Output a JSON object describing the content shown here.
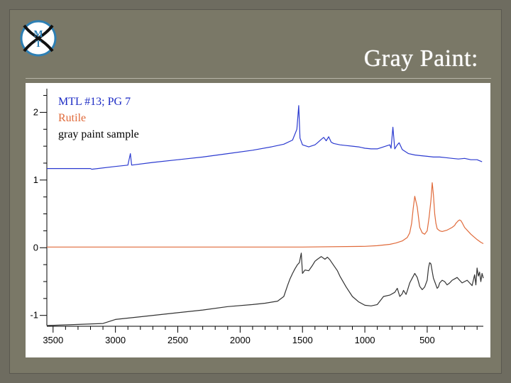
{
  "slide": {
    "title": "Gray Paint:",
    "logo_letters": "MTI"
  },
  "chart_data": {
    "type": "line",
    "title": "",
    "xlabel": "",
    "ylabel": "",
    "xlim": [
      3550,
      50
    ],
    "ylim": [
      -1.15,
      2.35
    ],
    "x_ticks": [
      3500,
      3000,
      2500,
      2000,
      1500,
      1000,
      500
    ],
    "y_ticks": [
      2,
      1,
      0,
      -1
    ],
    "grid": false,
    "legend_placement": "top-left",
    "series": [
      {
        "name": "MTL #13; PG 7",
        "color": "#2b3ad0",
        "x": [
          3550,
          3200,
          3190,
          3000,
          2900,
          2880,
          2870,
          2700,
          2500,
          2300,
          2100,
          1900,
          1750,
          1650,
          1580,
          1545,
          1530,
          1520,
          1500,
          1450,
          1400,
          1380,
          1350,
          1330,
          1310,
          1290,
          1270,
          1250,
          1200,
          1150,
          1100,
          1050,
          1000,
          950,
          900,
          850,
          800,
          790,
          775,
          760,
          740,
          725,
          700,
          650,
          600,
          550,
          500,
          450,
          400,
          350,
          300,
          250,
          200,
          150,
          100,
          60
        ],
        "y": [
          1.17,
          1.17,
          1.16,
          1.2,
          1.22,
          1.39,
          1.22,
          1.26,
          1.3,
          1.34,
          1.39,
          1.44,
          1.49,
          1.53,
          1.59,
          1.75,
          2.1,
          1.62,
          1.52,
          1.49,
          1.52,
          1.55,
          1.6,
          1.63,
          1.58,
          1.64,
          1.56,
          1.54,
          1.52,
          1.51,
          1.5,
          1.49,
          1.47,
          1.46,
          1.46,
          1.49,
          1.52,
          1.47,
          1.78,
          1.46,
          1.52,
          1.55,
          1.45,
          1.39,
          1.37,
          1.36,
          1.35,
          1.34,
          1.34,
          1.33,
          1.32,
          1.31,
          1.32,
          1.3,
          1.3,
          1.27
        ]
      },
      {
        "name": "Rutile",
        "color": "#e06a3a",
        "x": [
          3550,
          3000,
          2000,
          1500,
          1000,
          900,
          800,
          750,
          700,
          660,
          640,
          625,
          612,
          600,
          580,
          560,
          540,
          520,
          500,
          485,
          470,
          460,
          450,
          440,
          430,
          420,
          400,
          380,
          360,
          340,
          320,
          300,
          280,
          270,
          260,
          250,
          240,
          230,
          220,
          200,
          150,
          100,
          70,
          50
        ],
        "y": [
          0.01,
          0.01,
          0.01,
          0.01,
          0.02,
          0.03,
          0.05,
          0.07,
          0.1,
          0.15,
          0.22,
          0.36,
          0.58,
          0.76,
          0.6,
          0.3,
          0.22,
          0.2,
          0.25,
          0.45,
          0.7,
          0.96,
          0.78,
          0.5,
          0.36,
          0.28,
          0.25,
          0.24,
          0.25,
          0.26,
          0.28,
          0.3,
          0.33,
          0.36,
          0.38,
          0.4,
          0.41,
          0.4,
          0.37,
          0.3,
          0.2,
          0.12,
          0.08,
          0.06
        ]
      },
      {
        "name": "gray paint sample",
        "color": "#333333",
        "x": [
          3550,
          3100,
          3000,
          2900,
          2800,
          2500,
          2300,
          2100,
          1900,
          1800,
          1700,
          1650,
          1620,
          1600,
          1580,
          1560,
          1540,
          1525,
          1510,
          1500,
          1480,
          1450,
          1420,
          1400,
          1380,
          1350,
          1320,
          1300,
          1280,
          1250,
          1220,
          1200,
          1150,
          1100,
          1050,
          1000,
          950,
          900,
          850,
          800,
          760,
          740,
          720,
          700,
          690,
          680,
          670,
          660,
          640,
          620,
          600,
          580,
          560,
          540,
          520,
          500,
          490,
          480,
          470,
          460,
          450,
          440,
          430,
          420,
          410,
          400,
          380,
          360,
          340,
          320,
          300,
          280,
          260,
          240,
          220,
          200,
          180,
          160,
          140,
          120,
          110,
          100,
          90,
          80,
          70,
          60,
          50
        ],
        "y": [
          -1.15,
          -1.12,
          -1.06,
          -1.04,
          -1.02,
          -0.96,
          -0.92,
          -0.87,
          -0.84,
          -0.82,
          -0.79,
          -0.72,
          -0.56,
          -0.46,
          -0.38,
          -0.31,
          -0.25,
          -0.22,
          -0.08,
          -0.38,
          -0.33,
          -0.34,
          -0.26,
          -0.2,
          -0.17,
          -0.13,
          -0.17,
          -0.14,
          -0.18,
          -0.26,
          -0.34,
          -0.42,
          -0.58,
          -0.72,
          -0.8,
          -0.85,
          -0.86,
          -0.84,
          -0.72,
          -0.7,
          -0.66,
          -0.6,
          -0.72,
          -0.68,
          -0.63,
          -0.66,
          -0.69,
          -0.64,
          -0.52,
          -0.45,
          -0.38,
          -0.44,
          -0.57,
          -0.62,
          -0.58,
          -0.48,
          -0.3,
          -0.22,
          -0.24,
          -0.35,
          -0.45,
          -0.5,
          -0.55,
          -0.6,
          -0.58,
          -0.52,
          -0.48,
          -0.5,
          -0.55,
          -0.52,
          -0.48,
          -0.46,
          -0.44,
          -0.48,
          -0.52,
          -0.5,
          -0.48,
          -0.52,
          -0.56,
          -0.4,
          -0.55,
          -0.3,
          -0.42,
          -0.36,
          -0.5,
          -0.38,
          -0.45
        ]
      }
    ]
  }
}
